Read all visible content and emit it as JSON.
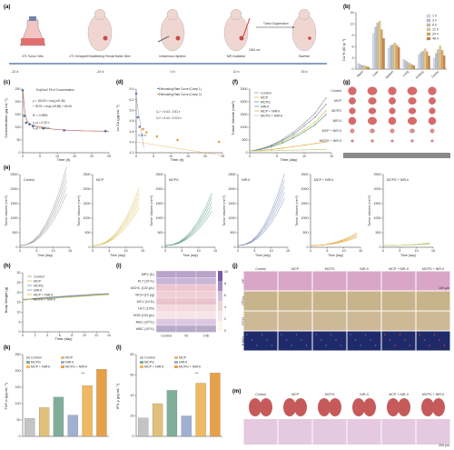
{
  "figure": {
    "panels": {
      "a": {
        "label": "(a)",
        "steps": [
          "4T1 Tumor Cells",
          "4T1 Xenograft Establishing Female Balb/c Mice",
          "Intravenous Injection",
          "NIR Irradiation",
          "Sacrifice"
        ],
        "timeline": [
          "-12 d",
          "-10 d",
          "0 d",
          "12 h",
          "15 d"
        ],
        "annotations": {
          "suppression": "Tumor Suppression",
          "laser": "1064 nm"
        }
      },
      "b": {
        "label": "(b)",
        "legend": [
          "1 h",
          "3 h",
          "6 h",
          "12 h",
          "24 h",
          "48 h"
        ],
        "colors": [
          "#d7dbe8",
          "#b8c4dc",
          "#c9c2a4",
          "#e8c98a",
          "#dba55e",
          "#c8834a"
        ],
        "categories": [
          "Heart",
          "Liver",
          "Spleen",
          "Lung",
          "Kidney",
          "Tumor"
        ],
        "ylabel": "Cu % (ID g⁻¹)",
        "yticks": [
          "0",
          "3",
          "6",
          "9",
          "12",
          "15"
        ]
      },
      "c": {
        "label": "(c)",
        "legend_title": "ExpDec2 Fit of Concentration",
        "eq1": "y = 160.53 × exp(-x/0.46)",
        "eq2": "+ 39.51 × exp(-x/5.86) + 84.06",
        "r2": "R² = 0.9981",
        "thalf1": "t₁/₂α = 0.32 h",
        "thalf2": "t₁/₂β = 3.94 h",
        "xlabel": "Time (h)",
        "ylabel": "Concentration (μg mL⁻¹)",
        "xticks": [
          "0",
          "5",
          "10",
          "15",
          "20",
          "25"
        ],
        "yticks": [
          "0",
          "50",
          "100",
          "150",
          "200",
          "250"
        ]
      },
      "d": {
        "label": "(d)",
        "legend1": "Eliminating Rate Curve (Comp 1)",
        "legend2": "Eliminating Rate Curve (Comp 2)",
        "eq1": "Cₙᴬ = 5.43 - 0.51 x",
        "eq2": "Cₙᴮ = 4.44 - 0.012 x",
        "marker": "2.20 h",
        "xlabel": "Time (h)",
        "ylabel": "Ln Cu (μg mL⁻¹)",
        "xticks": [
          "0",
          "5",
          "10",
          "15",
          "20",
          "25"
        ],
        "yticks": [
          "4.2",
          "4.4",
          "4.6",
          "4.8",
          "5.0",
          "5.2",
          "5.4"
        ]
      },
      "f": {
        "label": "(f)",
        "legend": [
          "Control",
          "MCP",
          "MCPG",
          "NIR-II",
          "MCP + NIR-II",
          "MCPG + NIR-II"
        ],
        "colors": [
          "#9aa0a8",
          "#d8c25a",
          "#5a9a8a",
          "#7f8fb8",
          "#e6b04a",
          "#c8d48a"
        ],
        "xlabel": "Time (day)",
        "ylabel": "Tumor Volume (mm³)",
        "xticks": [
          "0",
          "5",
          "10",
          "15"
        ],
        "yticks": [
          "0",
          "500",
          "1000",
          "1500",
          "2000",
          "2500"
        ]
      },
      "g": {
        "label": "(g)",
        "rows": [
          "Control",
          "MCP",
          "MCPG",
          "NIR-II",
          "MCP + NIR-II",
          "MCPG + NIR-II"
        ]
      },
      "e": {
        "label": "(e)",
        "groups": [
          "Control",
          "MCP",
          "MCPG",
          "NIR-II",
          "MCP + NIR-II",
          "MCPG + NIR-II"
        ],
        "xlabel": "Time (day)",
        "ylabel": "Tumor Volume (mm³)",
        "xticks": [
          "0",
          "5",
          "10",
          "15"
        ],
        "yticks": [
          "0",
          "500",
          "1000",
          "1500",
          "2000",
          "2500"
        ]
      },
      "h": {
        "label": "(h)",
        "legend": [
          "Control",
          "MCP",
          "MCPG",
          "NIR-II",
          "MCP + NIR-II",
          "MCPG + NIR-II"
        ],
        "xlabel": "Time (day)",
        "ylabel": "Body Weight (g)",
        "xticks": [
          "0",
          "2",
          "4",
          "6",
          "8",
          "10",
          "12",
          "14"
        ],
        "yticks": [
          "0",
          "5",
          "10",
          "15",
          "20",
          "25",
          "30"
        ]
      },
      "i": {
        "label": "(i)",
        "rows": [
          "MPV (fL)",
          "PLT (10⁹/L)",
          "MCHC (100 g/L)",
          "MCH (10 pg)",
          "MCV (10 fL)",
          "HCT (10%)",
          "HGB (100 g/L)",
          "RBC (10¹²/L)",
          "WBC (10⁹/L)"
        ],
        "cols": [
          "Control",
          "7D",
          "14D"
        ],
        "scale": [
          "10",
          "8",
          "6",
          "4",
          "2",
          "0"
        ]
      },
      "j": {
        "label": "(j)",
        "cols": [
          "Control",
          "MCP",
          "MCPG",
          "NIR-II",
          "MCP + NIR-II",
          "MCPG + NIR-II"
        ],
        "rows": [
          "HE",
          "GPX4",
          "FDX1",
          "TUNEL"
        ],
        "scale1": "100 μm",
        "scale2": "100 μm"
      },
      "k": {
        "label": "(k)",
        "legend": [
          "Control",
          "MCP",
          "MCPG",
          "NIR-II",
          "MCP + NIR-II",
          "MCPG + NIR-II"
        ],
        "ylabel": "TNF-α (pg mL⁻¹)",
        "yticks": [
          "0",
          "50",
          "100",
          "150",
          "200",
          "250"
        ],
        "sig": "***"
      },
      "l": {
        "label": "(l)",
        "legend": [
          "Control",
          "MCP",
          "MCPG",
          "NIR-II",
          "MCP + NIR-II",
          "MCPG + NIR-II"
        ],
        "ylabel": "IFN-γ (pg mL⁻¹)",
        "yticks": [
          "0",
          "20",
          "40",
          "60",
          "80"
        ],
        "sig": "***"
      },
      "m": {
        "label": "(m)",
        "cols": [
          "Control",
          "MCP",
          "MCPG",
          "NIR-II",
          "MCP + NIR-II",
          "MCPG + NIR-II"
        ],
        "scale": "200 μm"
      }
    }
  },
  "chart_data": [
    {
      "type": "bar",
      "panel": "b",
      "categories": [
        "Heart",
        "Liver",
        "Spleen",
        "Lung",
        "Kidney",
        "Tumor"
      ],
      "series": [
        {
          "name": "1 h",
          "values": [
            1.5,
            9.5,
            5.5,
            2.6,
            3.8,
            2.8
          ]
        },
        {
          "name": "3 h",
          "values": [
            1.2,
            11.2,
            6.2,
            2.2,
            4.4,
            4.2
          ]
        },
        {
          "name": "6 h",
          "values": [
            1.0,
            12.3,
            6.5,
            1.8,
            4.8,
            5.2
          ]
        },
        {
          "name": "12 h",
          "values": [
            0.9,
            12.8,
            7.0,
            1.5,
            5.4,
            6.2
          ]
        },
        {
          "name": "24 h",
          "values": [
            0.7,
            10.5,
            6.4,
            1.2,
            4.6,
            5.0
          ]
        },
        {
          "name": "48 h",
          "values": [
            0.5,
            8.2,
            5.8,
            0.9,
            3.5,
            3.6
          ]
        }
      ],
      "ylabel": "Cu % (ID g⁻¹)",
      "ylim": [
        0,
        15
      ]
    },
    {
      "type": "scatter",
      "panel": "c",
      "x": [
        0,
        0.5,
        1,
        2,
        3,
        6,
        12,
        24
      ],
      "y": [
        245,
        145,
        118,
        112,
        105,
        96,
        88,
        85
      ],
      "xlabel": "Time (h)",
      "ylabel": "Concentration (μg mL⁻¹)",
      "xlim": [
        0,
        25
      ],
      "ylim": [
        0,
        250
      ]
    },
    {
      "type": "scatter",
      "panel": "d",
      "x": [
        0,
        0.5,
        1,
        2,
        3,
        6,
        12,
        24
      ],
      "y": [
        5.5,
        4.98,
        4.77,
        4.72,
        4.65,
        4.56,
        4.48,
        4.44
      ],
      "xlabel": "Time (h)",
      "ylabel": "Ln Cu (μg mL⁻¹)",
      "xlim": [
        0,
        25
      ],
      "ylim": [
        4.2,
        5.6
      ]
    },
    {
      "type": "line",
      "panel": "f",
      "x": [
        0,
        2,
        4,
        6,
        8,
        10,
        12,
        14
      ],
      "series": [
        {
          "name": "Control",
          "values": [
            60,
            150,
            300,
            520,
            800,
            1150,
            1550,
            2150
          ]
        },
        {
          "name": "MCP",
          "values": [
            60,
            140,
            260,
            430,
            650,
            900,
            1200,
            1650
          ]
        },
        {
          "name": "MCPG",
          "values": [
            60,
            130,
            230,
            380,
            580,
            820,
            1100,
            1500
          ]
        },
        {
          "name": "NIR-II",
          "values": [
            60,
            145,
            280,
            480,
            720,
            1050,
            1400,
            1900
          ]
        },
        {
          "name": "MCP + NIR-II",
          "values": [
            60,
            90,
            130,
            180,
            240,
            300,
            360,
            420
          ]
        },
        {
          "name": "MCPG + NIR-II",
          "values": [
            60,
            70,
            80,
            90,
            100,
            110,
            120,
            130
          ]
        }
      ],
      "xlabel": "Time (day)",
      "ylabel": "Tumor Volume (mm³)",
      "ylim": [
        0,
        2500
      ]
    },
    {
      "type": "line",
      "panel": "h",
      "x": [
        0,
        2,
        4,
        6,
        8,
        10,
        12,
        14
      ],
      "series": [
        {
          "name": "Control",
          "values": [
            16.5,
            17.0,
            17.5,
            18.0,
            18.4,
            18.8,
            19.2,
            19.5
          ]
        },
        {
          "name": "MCP",
          "values": [
            16.3,
            16.8,
            17.2,
            17.6,
            18.0,
            18.4,
            18.8,
            19.2
          ]
        },
        {
          "name": "MCPG",
          "values": [
            16.2,
            16.6,
            17.0,
            17.5,
            17.9,
            18.2,
            18.6,
            19.0
          ]
        },
        {
          "name": "NIR-II",
          "values": [
            16.4,
            16.9,
            17.3,
            17.8,
            18.2,
            18.6,
            19.0,
            19.4
          ]
        },
        {
          "name": "MCP + NIR-II",
          "values": [
            16.1,
            16.5,
            16.9,
            17.3,
            17.7,
            18.1,
            18.5,
            18.9
          ]
        },
        {
          "name": "MCPG + NIR-II",
          "values": [
            16.0,
            16.4,
            16.8,
            17.2,
            17.6,
            18.0,
            18.4,
            18.8
          ]
        }
      ],
      "xlabel": "Time (day)",
      "ylabel": "Body Weight (g)",
      "ylim": [
        0,
        30
      ]
    },
    {
      "type": "bar",
      "panel": "k",
      "categories": [
        "Control",
        "MCP",
        "MCPG",
        "NIR-II",
        "MCP + NIR-II",
        "MCPG + NIR-II"
      ],
      "values": [
        55,
        88,
        120,
        65,
        155,
        205
      ],
      "ylabel": "TNF-α (pg mL⁻¹)",
      "ylim": [
        0,
        250
      ]
    },
    {
      "type": "bar",
      "panel": "l",
      "categories": [
        "Control",
        "MCP",
        "MCPG",
        "NIR-II",
        "MCP + NIR-II",
        "MCPG + NIR-II"
      ],
      "values": [
        18,
        32,
        45,
        20,
        52,
        62
      ],
      "ylabel": "IFN-γ (pg mL⁻¹)",
      "ylim": [
        0,
        80
      ]
    }
  ]
}
